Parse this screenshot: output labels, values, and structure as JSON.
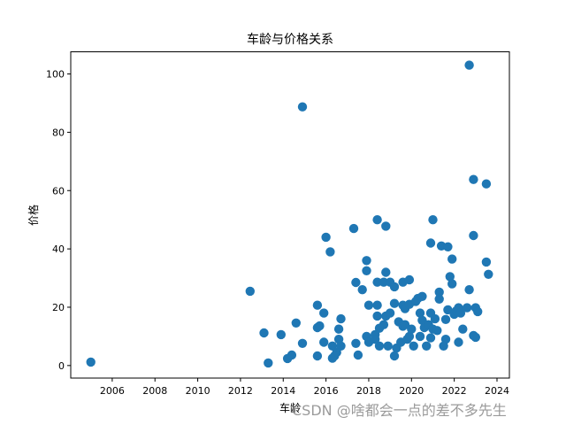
{
  "chart_data": {
    "type": "scatter",
    "title": "车龄与价格关系",
    "xlabel": "车龄",
    "ylabel": "价格",
    "xlim": [
      2004.06,
      2024.58
    ],
    "ylim": [
      -4.3,
      107.6
    ],
    "xticks": [
      2006,
      2008,
      2010,
      2012,
      2014,
      2016,
      2018,
      2020,
      2022,
      2024
    ],
    "yticks": [
      0,
      20,
      40,
      60,
      80,
      100
    ],
    "marker_color": "#1f77b4",
    "grid": false,
    "legend": null,
    "points": [
      [
        2005.0,
        1.2
      ],
      [
        2012.45,
        25.5
      ],
      [
        2013.1,
        11.2
      ],
      [
        2013.3,
        0.9
      ],
      [
        2013.9,
        10.6
      ],
      [
        2014.2,
        2.4
      ],
      [
        2014.4,
        3.6
      ],
      [
        2014.6,
        14.6
      ],
      [
        2014.9,
        7.6
      ],
      [
        2014.9,
        88.7
      ],
      [
        2015.6,
        20.7
      ],
      [
        2015.6,
        13.0
      ],
      [
        2015.7,
        13.6
      ],
      [
        2015.6,
        3.3
      ],
      [
        2015.9,
        18.0
      ],
      [
        2015.9,
        8.0
      ],
      [
        2016.0,
        44.0
      ],
      [
        2016.2,
        39.0
      ],
      [
        2016.3,
        6.7
      ],
      [
        2016.6,
        12.5
      ],
      [
        2016.6,
        9.0
      ],
      [
        2016.7,
        16.0
      ],
      [
        2016.7,
        6.7
      ],
      [
        2016.5,
        4.5
      ],
      [
        2016.4,
        3.3
      ],
      [
        2016.3,
        2.5
      ],
      [
        2017.3,
        47.0
      ],
      [
        2017.4,
        28.5
      ],
      [
        2017.4,
        7.6
      ],
      [
        2017.5,
        3.6
      ],
      [
        2017.7,
        26.0
      ],
      [
        2017.9,
        36.0
      ],
      [
        2017.9,
        32.5
      ],
      [
        2018.0,
        20.7
      ],
      [
        2017.9,
        10.0
      ],
      [
        2018.0,
        8.0
      ],
      [
        2018.4,
        50.0
      ],
      [
        2018.8,
        47.8
      ],
      [
        2018.8,
        32.0
      ],
      [
        2018.4,
        28.6
      ],
      [
        2018.7,
        28.6
      ],
      [
        2018.4,
        20.7
      ],
      [
        2018.4,
        17.0
      ],
      [
        2018.8,
        17.0
      ],
      [
        2019.0,
        18.0
      ],
      [
        2018.7,
        14.0
      ],
      [
        2018.5,
        12.8
      ],
      [
        2018.3,
        10.6
      ],
      [
        2018.3,
        9.0
      ],
      [
        2018.5,
        6.7
      ],
      [
        2018.9,
        6.7
      ],
      [
        2019.0,
        28.6
      ],
      [
        2019.2,
        27.0
      ],
      [
        2019.6,
        28.6
      ],
      [
        2019.9,
        29.4
      ],
      [
        2019.2,
        21.3
      ],
      [
        2019.6,
        20.7
      ],
      [
        2019.7,
        19.5
      ],
      [
        2019.9,
        21.0
      ],
      [
        2019.4,
        15.0
      ],
      [
        2019.6,
        13.5
      ],
      [
        2019.7,
        14.0
      ],
      [
        2019.3,
        6.0
      ],
      [
        2019.2,
        3.3
      ],
      [
        2019.5,
        8.0
      ],
      [
        2019.8,
        9.0
      ],
      [
        2019.9,
        10.0
      ],
      [
        2020.0,
        12.5
      ],
      [
        2020.1,
        6.7
      ],
      [
        2020.4,
        18.0
      ],
      [
        2020.3,
        23.0
      ],
      [
        2020.5,
        23.7
      ],
      [
        2020.2,
        22.0
      ],
      [
        2020.5,
        15.5
      ],
      [
        2020.6,
        13.0
      ],
      [
        2020.8,
        14.0
      ],
      [
        2020.4,
        10.0
      ],
      [
        2020.7,
        6.7
      ],
      [
        2020.9,
        42.0
      ],
      [
        2021.0,
        50.0
      ],
      [
        2020.9,
        18.0
      ],
      [
        2021.0,
        12.5
      ],
      [
        2020.9,
        9.5
      ],
      [
        2021.1,
        16.0
      ],
      [
        2021.2,
        12.0
      ],
      [
        2021.3,
        25.2
      ],
      [
        2021.3,
        22.8
      ],
      [
        2021.4,
        41.0
      ],
      [
        2021.6,
        15.8
      ],
      [
        2021.6,
        9.0
      ],
      [
        2021.5,
        6.7
      ],
      [
        2021.7,
        40.7
      ],
      [
        2021.7,
        19.1
      ],
      [
        2021.8,
        30.5
      ],
      [
        2021.9,
        28.0
      ],
      [
        2021.9,
        36.5
      ],
      [
        2022.0,
        17.6
      ],
      [
        2022.1,
        18.8
      ],
      [
        2022.2,
        19.8
      ],
      [
        2022.3,
        18.0
      ],
      [
        2022.2,
        8.0
      ],
      [
        2022.4,
        12.5
      ],
      [
        2022.7,
        103.0
      ],
      [
        2022.7,
        26.0
      ],
      [
        2022.6,
        19.8
      ],
      [
        2022.9,
        63.8
      ],
      [
        2022.9,
        44.6
      ],
      [
        2022.9,
        10.3
      ],
      [
        2023.0,
        9.7
      ],
      [
        2023.0,
        19.8
      ],
      [
        2023.1,
        18.5
      ],
      [
        2023.5,
        62.3
      ],
      [
        2023.5,
        35.5
      ],
      [
        2023.6,
        31.3
      ]
    ]
  },
  "watermark": "CSDN @啥都会一点的差不多先生"
}
